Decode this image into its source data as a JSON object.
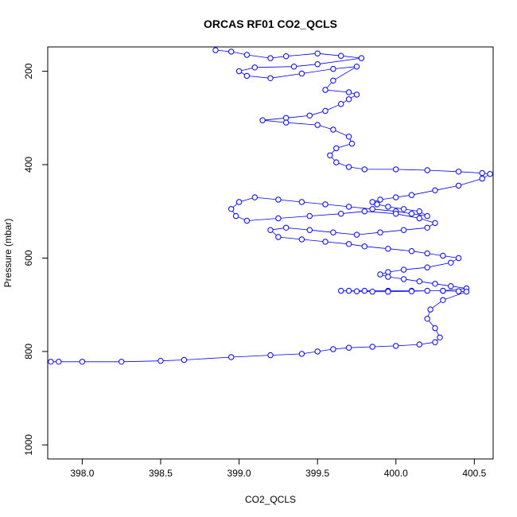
{
  "chart_data": {
    "type": "line",
    "title": "ORCAS RF01 CO2_QCLS",
    "xlabel": "CO2_QCLS",
    "ylabel": "Pressure (mbar)",
    "xlim": [
      397.78,
      400.62
    ],
    "ylim": [
      1030,
      148
    ],
    "y_inverted": true,
    "x_ticks": [
      "398.0",
      "398.5",
      "399.0",
      "399.5",
      "400.0",
      "400.5"
    ],
    "y_ticks": [
      "200",
      "400",
      "600",
      "800",
      "1000"
    ],
    "grid": false,
    "legend": "none",
    "series": [
      {
        "color": "#0000ff",
        "marker": "open-circle",
        "line": "thin",
        "x": [
          398.85,
          398.95,
          399.05,
          399.2,
          399.3,
          399.5,
          399.65,
          399.78,
          399.5,
          399.35,
          399.1,
          399.0,
          399.05,
          399.2,
          399.4,
          399.6,
          399.75,
          399.6,
          399.55,
          399.7,
          399.75,
          399.7,
          399.65,
          399.55,
          399.45,
          399.3,
          399.15,
          399.3,
          399.5,
          399.6,
          399.7,
          399.72,
          399.62,
          399.58,
          399.62,
          399.7,
          399.8,
          400.0,
          400.2,
          400.4,
          400.55,
          400.6,
          400.55,
          400.4,
          400.25,
          400.1,
          400.0,
          399.9,
          399.85,
          399.88,
          399.95,
          400.05,
          400.15,
          400.2,
          400.1,
          400.0,
          399.85,
          399.7,
          399.55,
          399.4,
          399.25,
          399.1,
          399.0,
          398.95,
          398.98,
          399.05,
          399.25,
          399.45,
          399.65,
          399.8,
          400.0,
          400.15,
          400.25,
          400.2,
          400.05,
          399.9,
          399.75,
          399.6,
          399.45,
          399.3,
          399.2,
          399.25,
          399.4,
          399.55,
          399.7,
          399.8,
          399.95,
          400.1,
          400.2,
          400.3,
          400.4,
          400.35,
          400.2,
          400.05,
          399.95,
          399.9,
          399.95,
          400.05,
          400.15,
          400.25,
          400.35,
          400.45,
          400.3,
          400.1,
          399.95,
          399.8,
          399.7,
          399.65,
          399.75,
          399.85,
          399.95,
          400.1,
          400.2,
          400.3,
          400.4,
          400.45,
          400.3,
          400.22,
          400.2,
          400.25,
          400.28,
          400.25,
          400.15,
          400.0,
          399.85,
          399.7,
          399.6,
          399.5,
          399.4,
          399.2,
          398.95,
          398.65,
          398.5,
          398.25,
          398.0,
          397.85,
          397.8
        ],
        "y": [
          155,
          158,
          165,
          172,
          168,
          162,
          167,
          172,
          185,
          190,
          192,
          200,
          210,
          215,
          205,
          195,
          190,
          220,
          240,
          245,
          250,
          260,
          270,
          285,
          295,
          300,
          305,
          310,
          315,
          325,
          340,
          355,
          365,
          380,
          395,
          405,
          410,
          410,
          412,
          415,
          418,
          420,
          430,
          445,
          455,
          465,
          470,
          475,
          480,
          485,
          490,
          495,
          500,
          510,
          505,
          500,
          495,
          490,
          485,
          480,
          475,
          470,
          480,
          495,
          510,
          520,
          515,
          510,
          505,
          500,
          505,
          515,
          525,
          535,
          540,
          545,
          550,
          545,
          540,
          535,
          540,
          555,
          560,
          565,
          570,
          575,
          580,
          585,
          590,
          595,
          600,
          610,
          620,
          625,
          630,
          635,
          640,
          645,
          650,
          655,
          660,
          665,
          670,
          670,
          670,
          670,
          670,
          670,
          671,
          672,
          672,
          671,
          670,
          670,
          671,
          672,
          690,
          710,
          730,
          750,
          770,
          780,
          785,
          788,
          790,
          792,
          795,
          800,
          805,
          808,
          812,
          818,
          820,
          822,
          822,
          822,
          822
        ]
      }
    ]
  }
}
